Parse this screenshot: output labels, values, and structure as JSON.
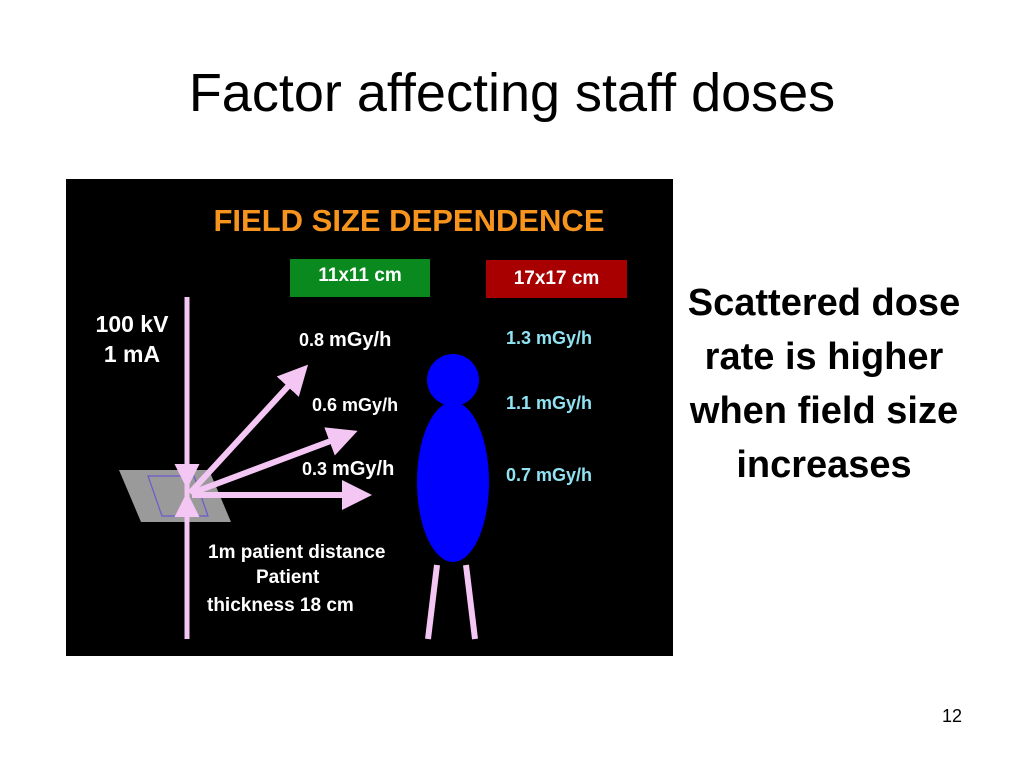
{
  "slide": {
    "title": "Factor affecting staff doses",
    "page_number": "12",
    "side_text": "Scattered dose rate is higher when field size increases"
  },
  "diagram": {
    "heading": "FIELD SIZE DEPENDENCE",
    "tube_kv": "100 kV",
    "tube_ma": "1 mA",
    "field_small": {
      "label": "11x11 cm",
      "color": "#0a8a1e"
    },
    "field_large": {
      "label": "17x17 cm",
      "color": "#a80000"
    },
    "doses_small": [
      {
        "value": "0.8",
        "unit": "mGy/h"
      },
      {
        "value": "0.6",
        "unit": "mGy/h"
      },
      {
        "value": "0.3",
        "unit": "mGy/h"
      }
    ],
    "doses_large": [
      "1.3 mGy/h",
      "1.1 mGy/h",
      "0.7 mGy/h"
    ],
    "distance_note": "1m patient distance",
    "thickness_note_line1": "Patient",
    "thickness_note_line2": "thickness 18 cm",
    "colors": {
      "heading": "#f7941d",
      "arrows": "#f4c6f4",
      "figure": "#0000ff",
      "large_field_values": "#8fe3f2",
      "table_plane": "#9a9a9a"
    }
  }
}
